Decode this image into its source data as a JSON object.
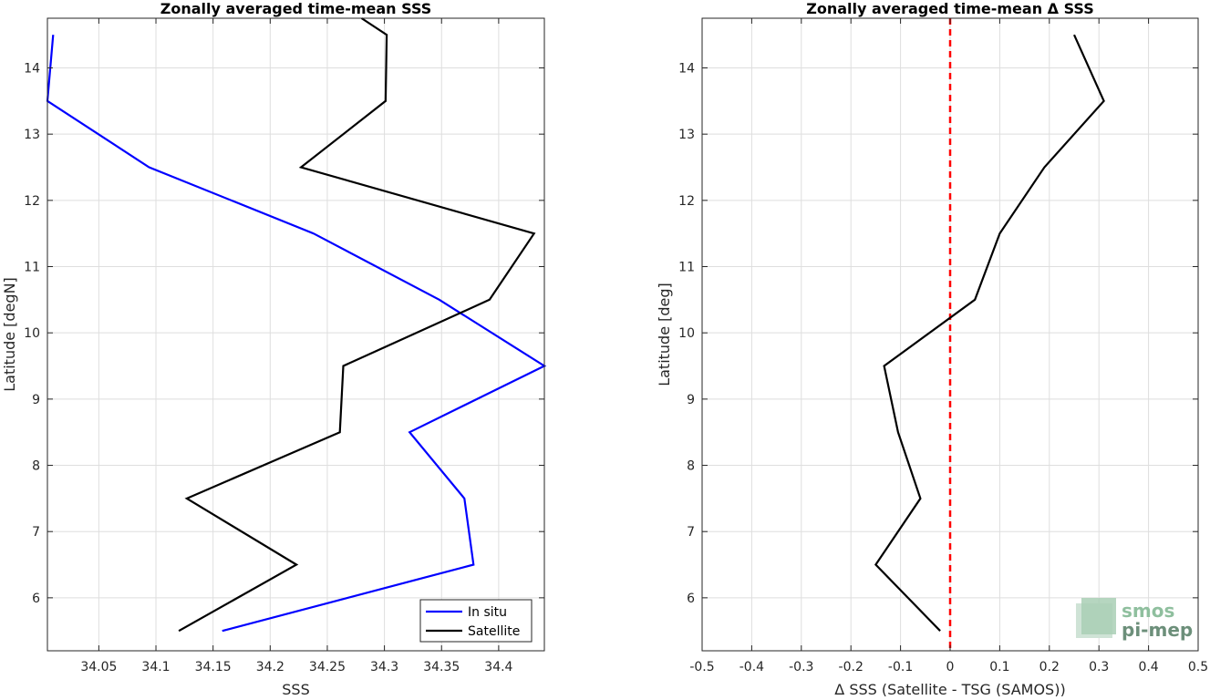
{
  "chart_data": [
    {
      "type": "line",
      "title": "Zonally averaged time-mean SSS",
      "xlabel": "SSS",
      "ylabel": "Latitude [degN]",
      "xlim": [
        34.005,
        34.44
      ],
      "ylim": [
        5.2,
        14.75
      ],
      "xticks": [
        34.05,
        34.1,
        34.15,
        34.2,
        34.25,
        34.3,
        34.35,
        34.4
      ],
      "xtick_labels": [
        "34.05",
        "34.1",
        "34.15",
        "34.2",
        "34.25",
        "34.3",
        "34.35",
        "34.4"
      ],
      "yticks": [
        6,
        7,
        8,
        9,
        10,
        11,
        12,
        13,
        14
      ],
      "ytick_labels": [
        "6",
        "7",
        "8",
        "9",
        "10",
        "11",
        "12",
        "13",
        "14"
      ],
      "grid": true,
      "legend_position": "bottom-right",
      "series": [
        {
          "name": "In situ",
          "color": "#0000ff",
          "x": [
            34.158,
            34.378,
            34.37,
            34.322,
            34.44,
            34.348,
            34.238,
            34.094,
            34.005,
            34.01
          ],
          "y": [
            5.5,
            6.5,
            7.5,
            8.5,
            9.5,
            10.5,
            11.5,
            12.5,
            13.5,
            14.5
          ]
        },
        {
          "name": "Satellite",
          "color": "#000000",
          "x": [
            34.12,
            34.223,
            34.127,
            34.261,
            34.264,
            34.392,
            34.431,
            34.227,
            34.301,
            34.302,
            34.28
          ],
          "y": [
            5.5,
            6.5,
            7.5,
            8.5,
            9.5,
            10.5,
            11.5,
            12.5,
            13.5,
            14.5,
            14.75
          ]
        }
      ]
    },
    {
      "type": "line",
      "title": "Zonally averaged time-mean Δ SSS",
      "xlabel": "Δ SSS (Satellite - TSG (SAMOS))",
      "ylabel": "Latitude [deg]",
      "xlim": [
        -0.5,
        0.5
      ],
      "ylim": [
        5.2,
        14.75
      ],
      "xticks": [
        -0.5,
        -0.4,
        -0.3,
        -0.2,
        -0.1,
        0,
        0.1,
        0.2,
        0.3,
        0.4,
        0.5
      ],
      "xtick_labels": [
        "-0.5",
        "-0.4",
        "-0.3",
        "-0.2",
        "-0.1",
        "0",
        "0.1",
        "0.2",
        "0.3",
        "0.4",
        "0.5"
      ],
      "yticks": [
        6,
        7,
        8,
        9,
        10,
        11,
        12,
        13,
        14
      ],
      "ytick_labels": [
        "6",
        "7",
        "8",
        "9",
        "10",
        "11",
        "12",
        "13",
        "14"
      ],
      "grid": true,
      "reference_line": {
        "x": 0,
        "color": "#ff0000",
        "style": "dashed"
      },
      "series": [
        {
          "color": "#000000",
          "x": [
            -0.02,
            -0.15,
            -0.06,
            -0.105,
            -0.133,
            0.05,
            0.1,
            0.19,
            0.31,
            0.25
          ],
          "y": [
            5.5,
            6.5,
            7.5,
            8.5,
            9.5,
            10.5,
            11.5,
            12.5,
            13.5,
            14.5
          ]
        }
      ]
    }
  ],
  "watermark": {
    "line1": "smos",
    "line2": "pi-mep"
  }
}
